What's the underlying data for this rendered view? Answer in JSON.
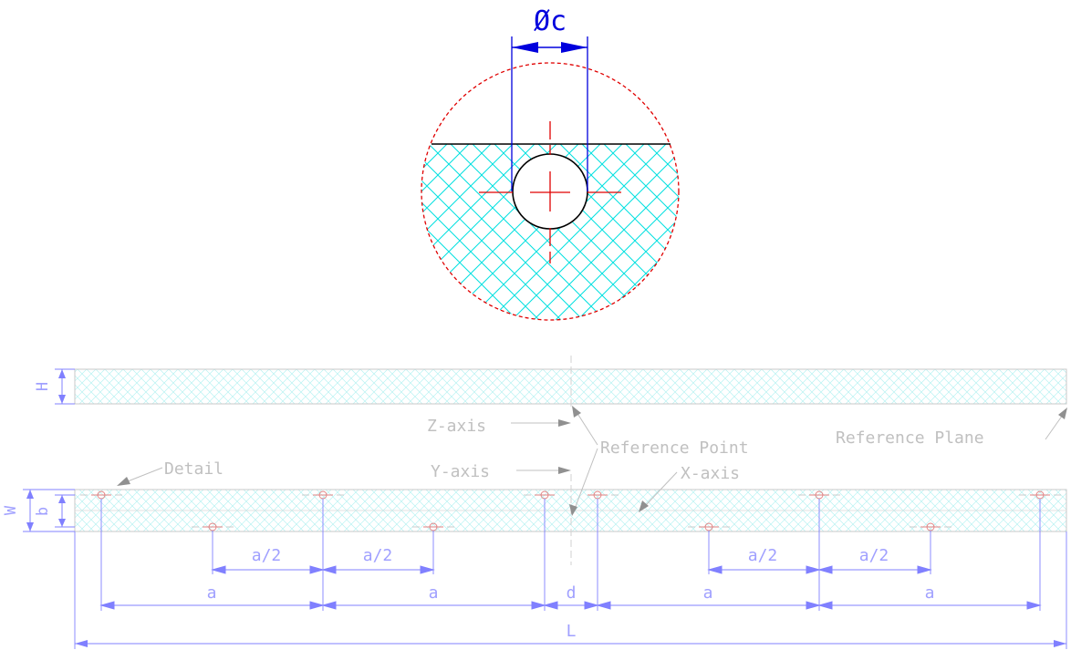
{
  "detail_view": {
    "dimension_label": "Øc",
    "dimension_symbol": "Ø",
    "dimension_letter": "c"
  },
  "side_view": {
    "height_label": "H"
  },
  "plan_view": {
    "width_label": "W",
    "offset_label": "b"
  },
  "annotations": {
    "z_axis": "Z-axis",
    "y_axis": "Y-axis",
    "x_axis": "X-axis",
    "reference_point": "Reference Point",
    "reference_plane": "Reference Plane",
    "detail": "Detail"
  },
  "dimensions": {
    "half_spacing": "a/2",
    "spacing": "a",
    "gap": "d",
    "length": "L"
  },
  "colors": {
    "hatch": "#00e0e0",
    "centerline": "#e00000",
    "dimension_blue": "#0000dd",
    "light_dim": "#8080ff",
    "light_gray": "#c8c8c8",
    "outline": "#000000"
  }
}
